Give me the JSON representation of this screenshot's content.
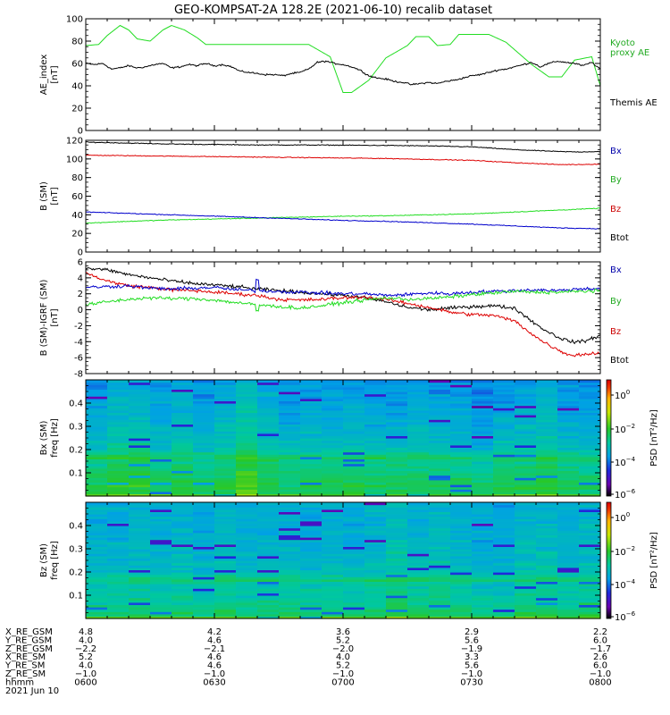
{
  "figure": {
    "title": "GEO-KOMPSAT-2A 128.2E (2021-06-10) recalib dataset"
  },
  "colors": {
    "black": "#000000",
    "red": "#dd0000",
    "green": "#22dd22",
    "blue": "#0000cc",
    "legend_blue": "#0000aa",
    "legend_red": "#cc0000"
  },
  "chart_data": [
    {
      "type": "line",
      "panel": "ae",
      "ylabel": "AE_index",
      "yunits": "[nT]",
      "ylim": [
        0,
        100
      ],
      "yticks": [
        0,
        20,
        40,
        60,
        80,
        100
      ],
      "xlim": [
        0,
        120
      ],
      "legend": [
        {
          "lines": [
            "Kyoto",
            "proxy AE"
          ],
          "color": "#22aa22"
        },
        {
          "lines": [
            "Themis AE"
          ],
          "color": "#000000"
        }
      ],
      "series": [
        {
          "name": "Kyoto proxy AE",
          "color": "#22dd22",
          "x": [
            0,
            3,
            5,
            8,
            10,
            12,
            15,
            18,
            20,
            23,
            26,
            28,
            31,
            34,
            36,
            39,
            44,
            52,
            57,
            60,
            62,
            66,
            70,
            75,
            77,
            80,
            82,
            85,
            87,
            91,
            94,
            98,
            101,
            104,
            108,
            111,
            114,
            118,
            120
          ],
          "y": [
            76,
            77,
            85,
            94,
            90,
            82,
            80,
            90,
            94,
            90,
            83,
            77,
            77,
            77,
            77,
            77,
            77,
            77,
            66,
            34,
            34,
            45,
            65,
            76,
            84,
            84,
            76,
            77,
            86,
            86,
            86,
            79,
            69,
            59,
            48,
            48,
            63,
            66,
            40
          ]
        },
        {
          "name": "Themis AE",
          "color": "#000000",
          "x": [
            0,
            2,
            4,
            6,
            8,
            10,
            12,
            14,
            16,
            18,
            20,
            22,
            24,
            26,
            28,
            30,
            32,
            34,
            36,
            38,
            40,
            42,
            44,
            46,
            48,
            50,
            52,
            54,
            56,
            58,
            60,
            62,
            64,
            66,
            68,
            70,
            72,
            74,
            76,
            78,
            80,
            82,
            84,
            86,
            88,
            90,
            92,
            94,
            96,
            98,
            100,
            102,
            104,
            106,
            108,
            110,
            112,
            114,
            116,
            118,
            120
          ],
          "y": [
            60,
            59,
            60,
            55,
            56,
            58,
            56,
            57,
            59,
            60,
            56,
            57,
            59,
            58,
            60,
            58,
            59,
            57,
            53,
            52,
            51,
            50,
            50,
            49,
            51,
            52,
            55,
            61,
            62,
            60,
            59,
            57,
            54,
            49,
            47,
            46,
            44,
            43,
            41,
            42,
            43,
            42,
            44,
            45,
            47,
            49,
            50,
            52,
            54,
            55,
            57,
            59,
            61,
            57,
            60,
            62,
            61,
            60,
            58,
            61,
            55
          ]
        }
      ]
    },
    {
      "type": "line",
      "panel": "b",
      "ylabel": "B (SM)",
      "yunits": "[nT]",
      "ylim": [
        0,
        120
      ],
      "yticks": [
        0,
        20,
        40,
        60,
        80,
        100,
        120
      ],
      "xlim": [
        0,
        120
      ],
      "legend": [
        {
          "lines": [
            "Bx"
          ],
          "color": "#0000aa"
        },
        {
          "lines": [
            "By"
          ],
          "color": "#22aa22"
        },
        {
          "lines": [
            "Bz"
          ],
          "color": "#cc0000"
        },
        {
          "lines": [
            "Btot"
          ],
          "color": "#000000"
        }
      ],
      "series": [
        {
          "name": "Btot",
          "color": "#000000",
          "x": [
            0,
            10,
            20,
            30,
            40,
            50,
            60,
            70,
            80,
            90,
            100,
            105,
            110,
            115,
            120
          ],
          "y": [
            118,
            117,
            116,
            115.5,
            115,
            115,
            114.8,
            114.5,
            114,
            113,
            110,
            109,
            108,
            107.5,
            108
          ]
        },
        {
          "name": "Bz",
          "color": "#dd0000",
          "x": [
            0,
            10,
            20,
            30,
            40,
            50,
            60,
            70,
            80,
            90,
            100,
            105,
            110,
            115,
            120
          ],
          "y": [
            104,
            103.5,
            103,
            102.5,
            102,
            101.5,
            101,
            100.5,
            99.5,
            98.5,
            96,
            95,
            94,
            94,
            94.5
          ]
        },
        {
          "name": "By",
          "color": "#22dd22",
          "x": [
            0,
            10,
            20,
            30,
            40,
            50,
            60,
            70,
            80,
            90,
            100,
            110,
            120
          ],
          "y": [
            31,
            33,
            34.5,
            35.5,
            36.5,
            37.5,
            38.5,
            39,
            40,
            41,
            43,
            45,
            47
          ]
        },
        {
          "name": "Bx",
          "color": "#0000cc",
          "x": [
            0,
            10,
            20,
            30,
            40,
            50,
            60,
            70,
            80,
            90,
            100,
            110,
            120
          ],
          "y": [
            43,
            41.5,
            40,
            38.5,
            37,
            35.5,
            34,
            33,
            31.5,
            30,
            28,
            26,
            25
          ]
        }
      ]
    },
    {
      "type": "line",
      "panel": "db",
      "ylabel": "B (SM)-IGRF (SM)",
      "yunits": "[nT]",
      "ylim": [
        -8,
        6
      ],
      "yticks": [
        -8,
        -6,
        -4,
        -2,
        0,
        2,
        4,
        6
      ],
      "xlim": [
        0,
        120
      ],
      "legend": [
        {
          "lines": [
            "Bx"
          ],
          "color": "#0000aa"
        },
        {
          "lines": [
            "By"
          ],
          "color": "#22aa22"
        },
        {
          "lines": [
            "Bz"
          ],
          "color": "#cc0000"
        },
        {
          "lines": [
            "Btot"
          ],
          "color": "#000000"
        }
      ],
      "series": [
        {
          "name": "Btot",
          "color": "#000000",
          "x": [
            0,
            5,
            10,
            15,
            20,
            25,
            30,
            35,
            40,
            45,
            50,
            55,
            60,
            65,
            70,
            75,
            80,
            85,
            90,
            95,
            100,
            103,
            106,
            110,
            113,
            116,
            120
          ],
          "y": [
            5.2,
            5.0,
            4.4,
            4.0,
            3.6,
            3.3,
            3.1,
            2.9,
            2.6,
            2.4,
            2.2,
            2.0,
            1.8,
            1.5,
            1.0,
            0.3,
            0.0,
            0.2,
            0.4,
            0.5,
            0.2,
            -1.0,
            -2.2,
            -3.4,
            -4.0,
            -4.0,
            -3.2
          ]
        },
        {
          "name": "Bz",
          "color": "#dd0000",
          "x": [
            0,
            5,
            10,
            15,
            20,
            25,
            30,
            35,
            40,
            45,
            50,
            55,
            60,
            65,
            70,
            75,
            80,
            85,
            90,
            95,
            100,
            103,
            106,
            110,
            113,
            116,
            120
          ],
          "y": [
            4.6,
            3.6,
            3.0,
            2.8,
            2.5,
            2.4,
            2.2,
            2.0,
            1.8,
            1.3,
            1.2,
            1.3,
            1.5,
            1.6,
            1.3,
            0.8,
            0.3,
            -0.3,
            -0.6,
            -0.7,
            -1.4,
            -2.6,
            -3.8,
            -5.0,
            -5.7,
            -5.6,
            -5.4
          ]
        },
        {
          "name": "Bx",
          "color": "#0000cc",
          "x": [
            0,
            5,
            10,
            15,
            20,
            25,
            30,
            35,
            40,
            45,
            50,
            55,
            60,
            65,
            70,
            75,
            80,
            85,
            90,
            95,
            100,
            105,
            110,
            115,
            120
          ],
          "y": [
            2.8,
            2.9,
            3.0,
            2.7,
            2.6,
            2.7,
            2.8,
            2.5,
            2.4,
            2.3,
            2.2,
            2.1,
            2.0,
            2.0,
            1.8,
            1.9,
            2.1,
            2.0,
            2.2,
            2.3,
            2.4,
            2.5,
            2.4,
            2.6,
            2.7
          ]
        },
        {
          "name": "By",
          "color": "#22dd22",
          "x": [
            0,
            5,
            10,
            15,
            20,
            25,
            30,
            35,
            40,
            45,
            50,
            55,
            60,
            65,
            70,
            75,
            80,
            85,
            90,
            95,
            100,
            105,
            110,
            115,
            120
          ],
          "y": [
            0.6,
            1.0,
            1.3,
            1.5,
            1.4,
            1.4,
            1.2,
            0.9,
            0.6,
            0.4,
            0.2,
            0.5,
            0.9,
            1.2,
            1.5,
            1.3,
            1.4,
            1.6,
            1.9,
            2.1,
            2.3,
            2.2,
            2.2,
            2.3,
            2.4
          ]
        }
      ]
    },
    {
      "type": "heatmap",
      "panel": "spec_bx",
      "ylabel": "Bx (SM)",
      "yunits": "freq [Hz]",
      "ylim": [
        0.0,
        0.5
      ],
      "yticks": [
        0.1,
        0.2,
        0.3,
        0.4
      ],
      "xlim": [
        0,
        120
      ],
      "colorbar": {
        "label": "PSD [nT²/Hz]",
        "ticks": [
          {
            "exp": "0"
          },
          {
            "exp": "−2"
          },
          {
            "exp": "−4"
          },
          {
            "exp": "−6"
          }
        ]
      },
      "time_columns": 24,
      "freq_rows": 50,
      "psd_log10_profile": {
        "freq": [
          0.0,
          0.05,
          0.1,
          0.15,
          0.165,
          0.2,
          0.3,
          0.4,
          0.5
        ],
        "value": [
          -3.0,
          -3.0,
          -3.3,
          -3.6,
          -3.0,
          -4.1,
          -4.5,
          -4.8,
          -5.0
        ]
      }
    },
    {
      "type": "heatmap",
      "panel": "spec_bz",
      "ylabel": "Bz (SM)",
      "yunits": "freq [Hz]",
      "ylim": [
        0.0,
        0.5
      ],
      "yticks": [
        0.1,
        0.2,
        0.3,
        0.4
      ],
      "xlim": [
        0,
        120
      ],
      "colorbar": {
        "label": "PSD [nT²/Hz]",
        "ticks": [
          {
            "exp": "0"
          },
          {
            "exp": "−2"
          },
          {
            "exp": "−4"
          },
          {
            "exp": "−6"
          }
        ]
      },
      "time_columns": 24,
      "freq_rows": 50,
      "psd_log10_profile": {
        "freq": [
          0.0,
          0.05,
          0.1,
          0.15,
          0.165,
          0.2,
          0.3,
          0.4,
          0.5
        ],
        "value": [
          -3.0,
          -3.6,
          -3.9,
          -4.0,
          -3.3,
          -4.3,
          -4.5,
          -4.6,
          -4.7
        ]
      }
    }
  ],
  "ephemeris": {
    "labels": [
      "X_RE_GSM",
      "Y_RE_GSM",
      "Z_RE_GSM",
      "X_RE_SM",
      "Y_RE_SM",
      "Z_RE_SM",
      "hhmm"
    ],
    "date": "2021 Jun 10",
    "columns": [
      {
        "t": 0,
        "values": [
          "4.8",
          "4.0",
          "−2.2",
          "5.2",
          "4.0",
          "−1.0",
          "0600"
        ]
      },
      {
        "t": 30,
        "values": [
          "4.2",
          "4.6",
          "−2.1",
          "4.6",
          "4.6",
          "−1.0",
          "0630"
        ]
      },
      {
        "t": 60,
        "values": [
          "3.6",
          "5.2",
          "−2.0",
          "4.0",
          "5.2",
          "−1.0",
          "0700"
        ]
      },
      {
        "t": 90,
        "values": [
          "2.9",
          "5.6",
          "−1.9",
          "3.3",
          "5.6",
          "−1.0",
          "0730"
        ]
      },
      {
        "t": 120,
        "values": [
          "2.2",
          "6.0",
          "−1.7",
          "2.6",
          "6.0",
          "−1.0",
          "0800"
        ]
      }
    ]
  }
}
